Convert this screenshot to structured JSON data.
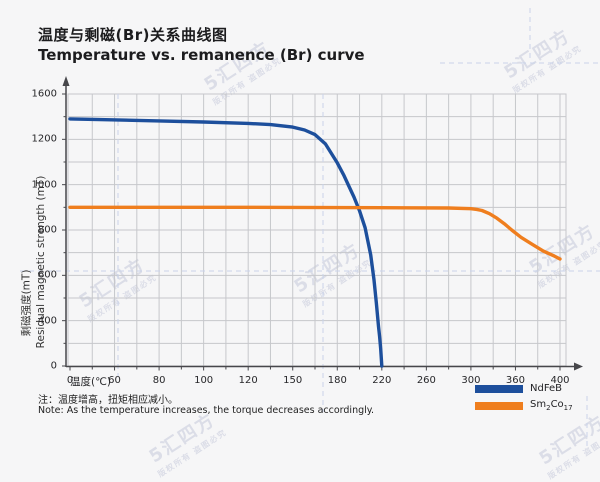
{
  "title_zh": "温度与剩磁(Br)关系曲线图",
  "title_en": "Temperature vs. remanence (Br) curve",
  "y_axis": {
    "label_zh": "剩磁强度(mT)",
    "label_en": "Residual magnetic strength (mT)"
  },
  "x_axis": {
    "label": "温度(℃)"
  },
  "note_zh": "注：温度增高，扭矩相应减小。",
  "note_en": "Note: As the temperature increases, the torque decreases accordingly.",
  "watermark": {
    "logo": "5汇四方",
    "subtext": "版权所有 盗图必究"
  },
  "legend": {
    "items": [
      {
        "label": "NdFeB",
        "color": "#1d4f9c"
      },
      {
        "label": "Sm2Co17",
        "p0": "Sm",
        "p1": "2",
        "p2": "Co",
        "p3": "17",
        "color": "#ef7e1e"
      }
    ]
  },
  "colors": {
    "blue": "#1d4f9c",
    "orange": "#ef7e1e",
    "grid": "#c6c7cb",
    "axis": "#47474b",
    "guide_dash": "#c9d3ea",
    "background": "#f6f6f7"
  },
  "chart_data": {
    "type": "line",
    "title": "Temperature vs. remanence (Br) curve",
    "title_zh": "温度与剩磁(Br)关系曲线图",
    "xlabel": "温度(℃)",
    "ylabel": "Residual magnetic strength (mT)",
    "ylabel_zh": "剩磁强度(mT)",
    "x_ticks": [
      0,
      60,
      80,
      100,
      120,
      150,
      180,
      220,
      260,
      300,
      360,
      400
    ],
    "y_ticks": [
      1600,
      1200,
      1000,
      800,
      600,
      400,
      0
    ],
    "xlim": [
      0,
      400
    ],
    "ylim": [
      0,
      1600
    ],
    "grid": true,
    "legend_position": "bottom-right",
    "series": [
      {
        "name": "NdFeB",
        "color": "#1d4f9c",
        "points": [
          [
            0,
            1380
          ],
          [
            40,
            1374
          ],
          [
            80,
            1363
          ],
          [
            100,
            1353
          ],
          [
            120,
            1341
          ],
          [
            135,
            1330
          ],
          [
            150,
            1308
          ],
          [
            158,
            1282
          ],
          [
            165,
            1242
          ],
          [
            172,
            1180
          ],
          [
            180,
            1096
          ],
          [
            186,
            1040
          ],
          [
            190,
            998
          ],
          [
            195,
            945
          ],
          [
            200,
            885
          ],
          [
            205,
            810
          ],
          [
            210,
            690
          ],
          [
            213,
            580
          ],
          [
            215,
            480
          ],
          [
            217,
            350
          ],
          [
            218,
            260
          ],
          [
            219,
            150
          ],
          [
            220,
            0
          ]
        ]
      },
      {
        "name": "Sm2Co17",
        "color": "#ef7e1e",
        "points": [
          [
            0,
            900
          ],
          [
            60,
            900
          ],
          [
            120,
            900
          ],
          [
            180,
            899
          ],
          [
            240,
            898
          ],
          [
            280,
            897
          ],
          [
            300,
            894
          ],
          [
            308,
            891
          ],
          [
            315,
            886
          ],
          [
            325,
            872
          ],
          [
            335,
            852
          ],
          [
            345,
            828
          ],
          [
            355,
            800
          ],
          [
            365,
            768
          ],
          [
            375,
            737
          ],
          [
            385,
            707
          ],
          [
            395,
            685
          ],
          [
            400,
            672
          ]
        ]
      }
    ]
  }
}
